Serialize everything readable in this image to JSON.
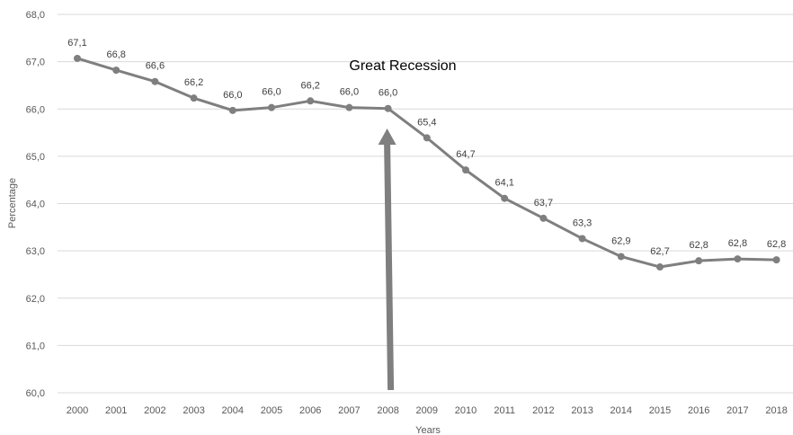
{
  "chart_data": {
    "type": "line",
    "xlabel": "Years",
    "ylabel": "Percentage",
    "ylim": [
      60.0,
      68.0
    ],
    "yticks": [
      "60,0",
      "61,0",
      "62,0",
      "63,0",
      "64,0",
      "65,0",
      "66,0",
      "67,0",
      "68,0"
    ],
    "grid": true,
    "categories": [
      "2000",
      "2001",
      "2002",
      "2003",
      "2004",
      "2005",
      "2006",
      "2007",
      "2008",
      "2009",
      "2010",
      "2011",
      "2012",
      "2013",
      "2014",
      "2015",
      "2016",
      "2017",
      "2018"
    ],
    "series": [
      {
        "values": [
          67.07,
          66.82,
          66.58,
          66.23,
          65.97,
          66.03,
          66.17,
          66.03,
          66.01,
          65.39,
          64.71,
          64.11,
          63.69,
          63.26,
          62.88,
          62.66,
          62.79,
          62.83,
          62.81
        ],
        "labels": [
          "67,1",
          "66,8",
          "66,6",
          "66,2",
          "66,0",
          "66,0",
          "66,2",
          "66,0",
          "66,0",
          "65,4",
          "64,7",
          "64,1",
          "63,7",
          "63,3",
          "62,9",
          "62,7",
          "62,8",
          "62,8",
          "62,8"
        ]
      }
    ],
    "annotation": {
      "text": "Great Recession",
      "category": "2008"
    },
    "colors": {
      "line": "#7f7f7f",
      "arrow": "#7f7f7f",
      "grid": "#d9d9d9"
    }
  }
}
